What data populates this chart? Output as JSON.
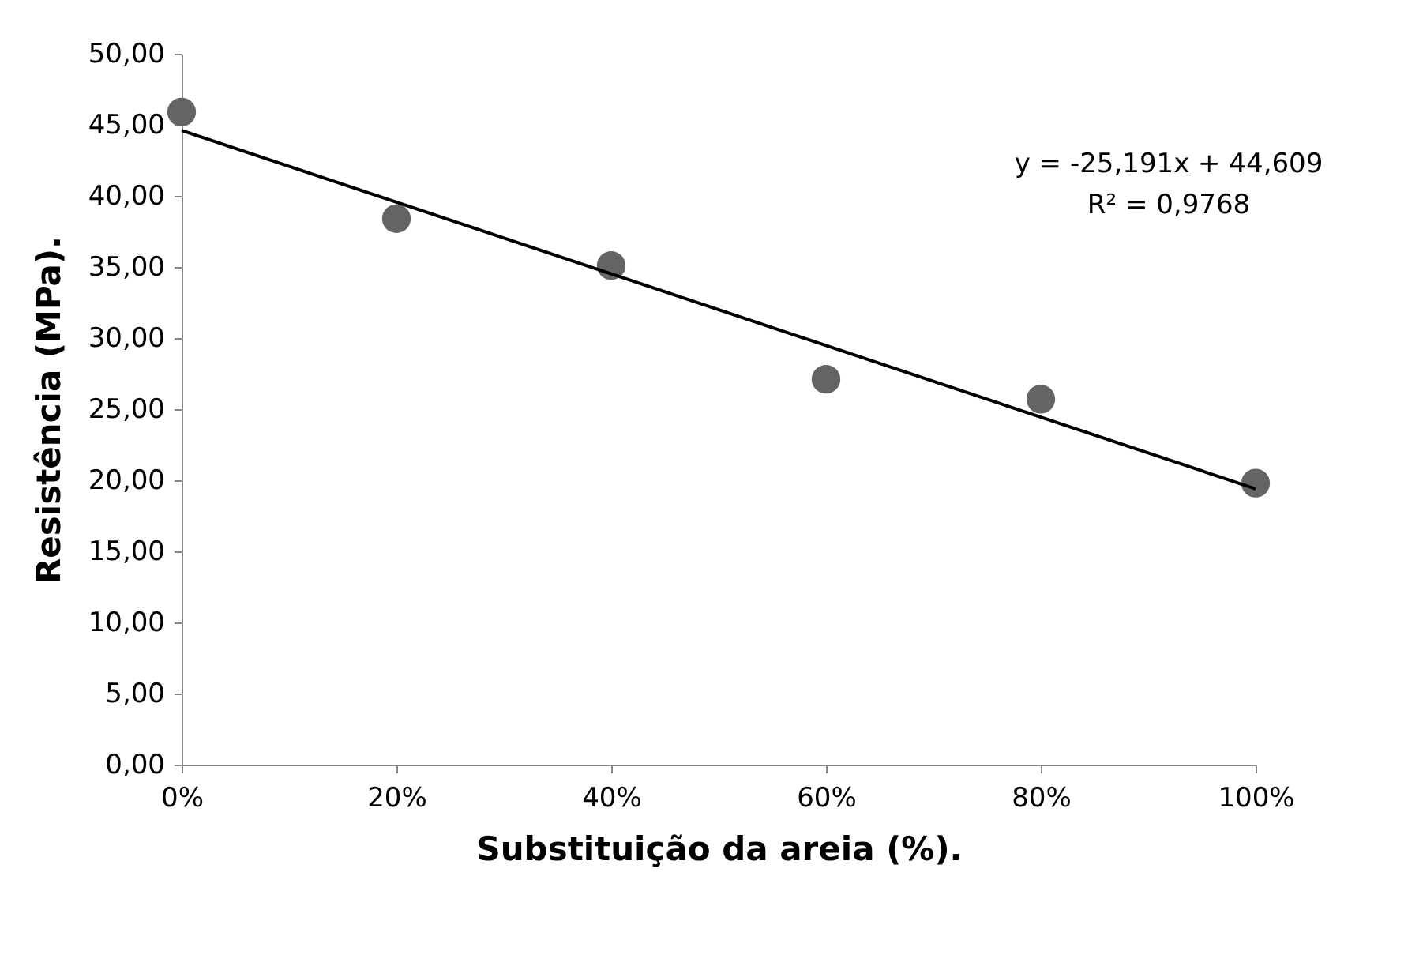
{
  "chart_data": {
    "type": "scatter",
    "xlabel": "Substituição da areia (%).",
    "ylabel": "Resistência (MPa).",
    "x": [
      0,
      0.2,
      0.4,
      0.6,
      0.8,
      1
    ],
    "series": [
      {
        "color": "#646464",
        "values": [
          45.9,
          38.4,
          35.1,
          27.1,
          25.7,
          19.8
        ],
        "marker": "circle"
      },
      {
        "type": "line",
        "color": "#000000",
        "x": [
          0,
          1
        ],
        "values": [
          44.6,
          19.4
        ],
        "marker": "none",
        "line_style": "solid"
      }
    ],
    "xlim": [
      0,
      1
    ],
    "xticks": [
      {
        "value": 0,
        "label": "0%"
      },
      {
        "value": 0.2,
        "label": "20%"
      },
      {
        "value": 0.4,
        "label": "40%"
      },
      {
        "value": 0.6,
        "label": "60%"
      },
      {
        "value": 0.8,
        "label": "80%"
      },
      {
        "value": 1,
        "label": "100%"
      }
    ],
    "ylim": [
      0,
      50
    ],
    "yticks": [
      {
        "value": 0,
        "label": "0,00"
      },
      {
        "value": 5,
        "label": "5,00"
      },
      {
        "value": 10,
        "label": "10,00"
      },
      {
        "value": 15,
        "label": "15,00"
      },
      {
        "value": 20,
        "label": "20,00"
      },
      {
        "value": 25,
        "label": "25,00"
      },
      {
        "value": 30,
        "label": "30,00"
      },
      {
        "value": 35,
        "label": "35,00"
      },
      {
        "value": 40,
        "label": "40,00"
      },
      {
        "value": 45,
        "label": "45,00"
      },
      {
        "value": 50,
        "label": "50,00"
      }
    ],
    "annotations": [
      "y = -25,191x + 44,609",
      "R² = 0,9768"
    ],
    "grid": false
  }
}
